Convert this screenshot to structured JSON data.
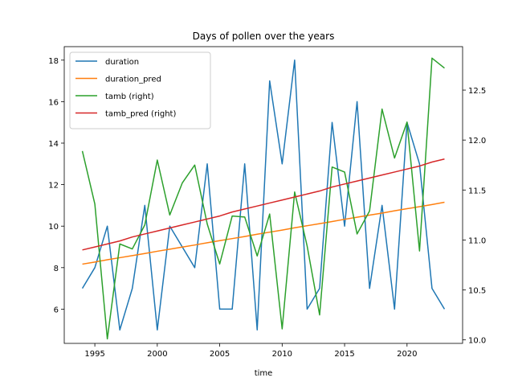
{
  "chart_data": {
    "type": "line",
    "title": "Days of pollen over the years",
    "xlabel": "time",
    "ylabel": "",
    "ylabel_right": "",
    "xlim": [
      1992.55,
      2024.45
    ],
    "ylim": [
      4.35,
      18.65
    ],
    "ylim_right": [
      9.965,
      12.935
    ],
    "x_ticks": [
      1995,
      2000,
      2005,
      2010,
      2015,
      2020
    ],
    "y_ticks": [
      6,
      8,
      10,
      12,
      14,
      16,
      18
    ],
    "y_ticks_right": [
      10.0,
      10.5,
      11.0,
      11.5,
      12.0,
      12.5
    ],
    "y_tick_labels_right": [
      "10.0",
      "10.5",
      "11.0",
      "11.5",
      "12.0",
      "12.5"
    ],
    "legend_position": "upper-left",
    "x": [
      1994,
      1995,
      1996,
      1997,
      1998,
      1999,
      2000,
      2001,
      2002,
      2003,
      2004,
      2005,
      2006,
      2007,
      2008,
      2009,
      2010,
      2011,
      2012,
      2013,
      2014,
      2015,
      2016,
      2017,
      2018,
      2019,
      2020,
      2021,
      2022,
      2023
    ],
    "series": [
      {
        "name": "duration",
        "axis": "left",
        "color": "#1f77b4",
        "values": [
          7,
          8,
          10,
          5,
          7,
          11,
          5,
          10,
          9,
          8,
          13,
          6,
          6,
          13,
          5,
          17,
          13,
          18,
          6,
          7,
          15,
          10,
          16,
          7,
          11,
          6,
          15,
          13,
          7,
          6
        ]
      },
      {
        "name": "duration_pred",
        "axis": "left",
        "color": "#ff7f0e",
        "values": [
          8.17,
          8.27,
          8.38,
          8.48,
          8.58,
          8.68,
          8.79,
          8.89,
          8.99,
          9.09,
          9.2,
          9.3,
          9.4,
          9.5,
          9.61,
          9.71,
          9.81,
          9.92,
          10.02,
          10.12,
          10.22,
          10.33,
          10.43,
          10.53,
          10.63,
          10.74,
          10.84,
          10.94,
          11.04,
          11.15
        ]
      },
      {
        "name": "tamb (right)",
        "axis": "right",
        "color": "#2ca02c",
        "values": [
          11.89,
          11.36,
          10.01,
          10.96,
          10.91,
          11.15,
          11.8,
          11.25,
          11.57,
          11.75,
          11.16,
          10.76,
          11.24,
          11.23,
          10.84,
          11.26,
          10.11,
          11.48,
          10.94,
          10.25,
          11.73,
          11.68,
          11.06,
          11.29,
          12.31,
          11.82,
          12.18,
          10.89,
          12.82,
          12.72
        ]
      },
      {
        "name": "tamb_pred (right)",
        "axis": "right",
        "color": "#d62728",
        "values": [
          10.9,
          10.93,
          10.96,
          10.99,
          11.03,
          11.06,
          11.09,
          11.12,
          11.15,
          11.18,
          11.21,
          11.24,
          11.28,
          11.31,
          11.34,
          11.37,
          11.4,
          11.43,
          11.46,
          11.49,
          11.53,
          11.56,
          11.59,
          11.62,
          11.65,
          11.68,
          11.71,
          11.74,
          11.78,
          11.81
        ]
      }
    ]
  }
}
